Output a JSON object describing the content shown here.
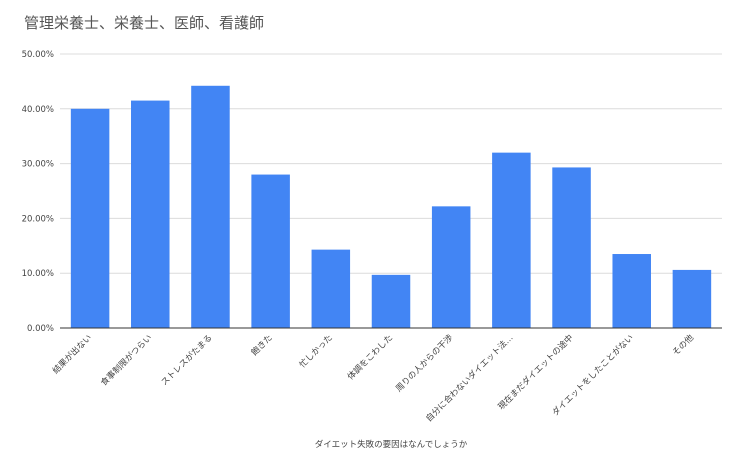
{
  "chart_data": {
    "type": "bar",
    "title": "管理栄養士、栄養士、医師、看護師",
    "xlabel": "ダイエット失敗の要因はなんでしょうか",
    "ylabel": "",
    "ylim": [
      0,
      50
    ],
    "yticks": [
      "0.00%",
      "10.00%",
      "20.00%",
      "30.00%",
      "40.00%",
      "50.00%"
    ],
    "grid": true,
    "legend": "none",
    "bar_color": "#4285f4",
    "categories": [
      "結果が出ない",
      "食事制限がつらい",
      "ストレスがたまる",
      "飽きた",
      "忙しかった",
      "体調をこわした",
      "周りの人からの干渉",
      "自分に合わないダイエット法…",
      "現在まだダイエットの途中",
      "ダイエットをしたことがない",
      "その他"
    ],
    "values": [
      40.0,
      41.5,
      44.2,
      28.0,
      14.3,
      9.7,
      22.2,
      32.0,
      29.3,
      13.5,
      10.6
    ]
  }
}
